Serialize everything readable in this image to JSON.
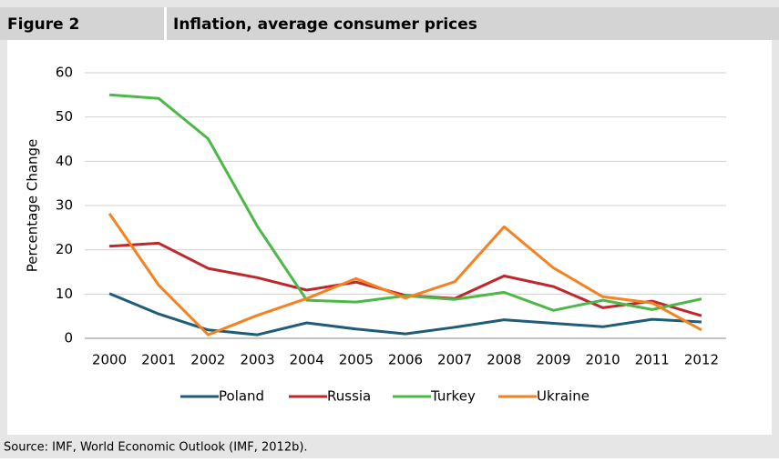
{
  "figure_label": "Figure 2",
  "source": "Source: IMF, World Economic Outlook (IMF, 2012b).",
  "chart_data": {
    "type": "line",
    "title": "Inflation, average consumer prices",
    "y_label": "Percentage Change",
    "categories": [
      "2000",
      "2001",
      "2002",
      "2003",
      "2004",
      "2005",
      "2006",
      "2007",
      "2008",
      "2009",
      "2010",
      "2011",
      "2012"
    ],
    "series": [
      {
        "name": "Poland",
        "color": "#1f5c7a",
        "values": [
          10.1,
          5.5,
          1.9,
          0.8,
          3.5,
          2.1,
          1.0,
          2.5,
          4.2,
          3.4,
          2.6,
          4.3,
          3.7
        ]
      },
      {
        "name": "Russia",
        "color": "#c0272d",
        "values": [
          20.8,
          21.5,
          15.8,
          13.7,
          10.9,
          12.7,
          9.7,
          9.0,
          14.1,
          11.7,
          6.9,
          8.4,
          5.1
        ]
      },
      {
        "name": "Turkey",
        "color": "#4cb848",
        "values": [
          55.0,
          54.2,
          45.1,
          25.3,
          8.6,
          8.2,
          9.6,
          8.8,
          10.4,
          6.3,
          8.6,
          6.5,
          8.9
        ]
      },
      {
        "name": "Ukraine",
        "color": "#f58220",
        "values": [
          28.2,
          12.0,
          0.8,
          5.2,
          9.0,
          13.5,
          9.1,
          12.8,
          25.2,
          15.9,
          9.4,
          8.0,
          1.9
        ]
      }
    ],
    "ylim": [
      0,
      60
    ],
    "yticks": [
      0,
      10,
      20,
      30,
      40,
      50,
      60
    ],
    "grid": true,
    "legend": "bottom"
  }
}
